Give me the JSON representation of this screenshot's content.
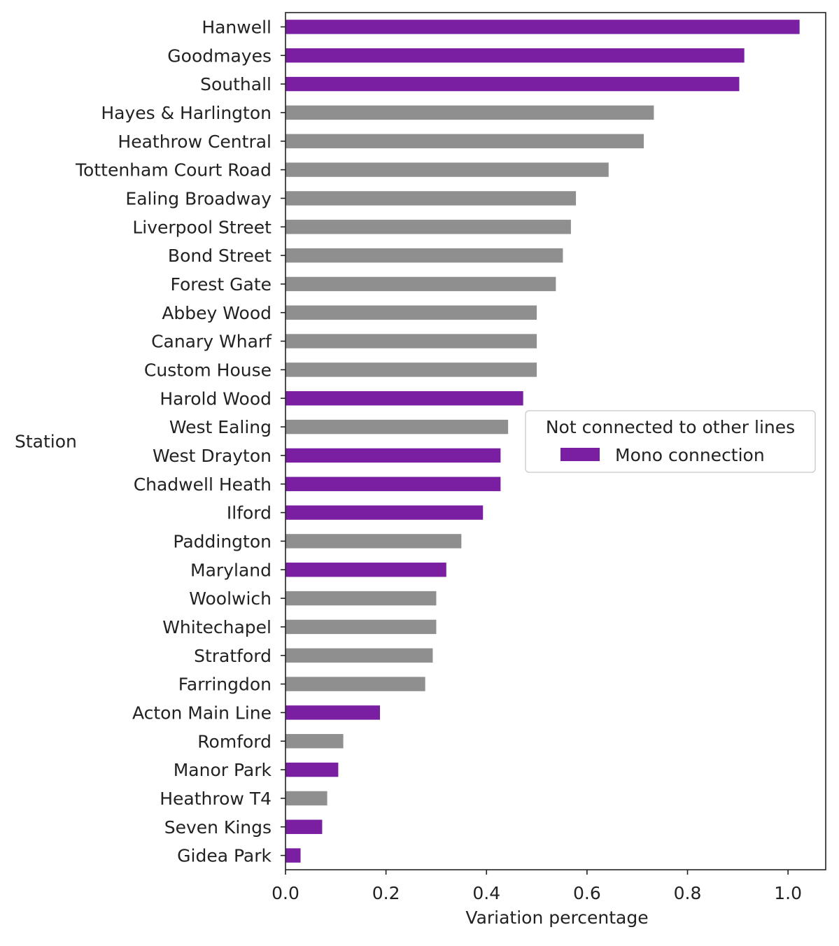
{
  "chart_data": {
    "type": "bar",
    "orientation": "horizontal",
    "title": "",
    "xlabel": "Variation percentage",
    "ylabel": "Station",
    "xlim": [
      0.0,
      1.075
    ],
    "xticks": [
      "0.0",
      "0.2",
      "0.4",
      "0.6",
      "0.8",
      "1.0"
    ],
    "grid": false,
    "legend": {
      "title": "Not connected to other lines",
      "entries": [
        {
          "label": "Mono connection",
          "color": "#7b1fa2"
        }
      ],
      "placement": "center-right"
    },
    "colors": {
      "mono": "#7b1fa2",
      "other": "#8f8f8f"
    },
    "categories": [
      "Hanwell",
      "Goodmayes",
      "Southall",
      "Hayes & Harlington",
      "Heathrow Central",
      "Tottenham Court Road",
      "Ealing Broadway",
      "Liverpool Street",
      "Bond Street",
      "Forest Gate",
      "Abbey Wood",
      "Canary Wharf",
      "Custom House",
      "Harold Wood",
      "West Ealing",
      "West Drayton",
      "Chadwell Heath",
      "Ilford",
      "Paddington",
      "Maryland",
      "Woolwich",
      "Whitechapel",
      "Stratford",
      "Farringdon",
      "Acton Main Line",
      "Romford",
      "Manor Park",
      "Heathrow T4",
      "Seven Kings",
      "Gidea Park"
    ],
    "values": [
      1.023,
      0.913,
      0.903,
      0.733,
      0.713,
      0.643,
      0.578,
      0.568,
      0.552,
      0.538,
      0.5,
      0.5,
      0.5,
      0.473,
      0.443,
      0.428,
      0.428,
      0.393,
      0.35,
      0.32,
      0.3,
      0.3,
      0.293,
      0.278,
      0.188,
      0.115,
      0.105,
      0.083,
      0.073,
      0.03
    ],
    "mono": [
      true,
      true,
      true,
      false,
      false,
      false,
      false,
      false,
      false,
      false,
      false,
      false,
      false,
      true,
      false,
      true,
      true,
      true,
      false,
      true,
      false,
      false,
      false,
      false,
      true,
      false,
      true,
      false,
      true,
      true
    ]
  }
}
